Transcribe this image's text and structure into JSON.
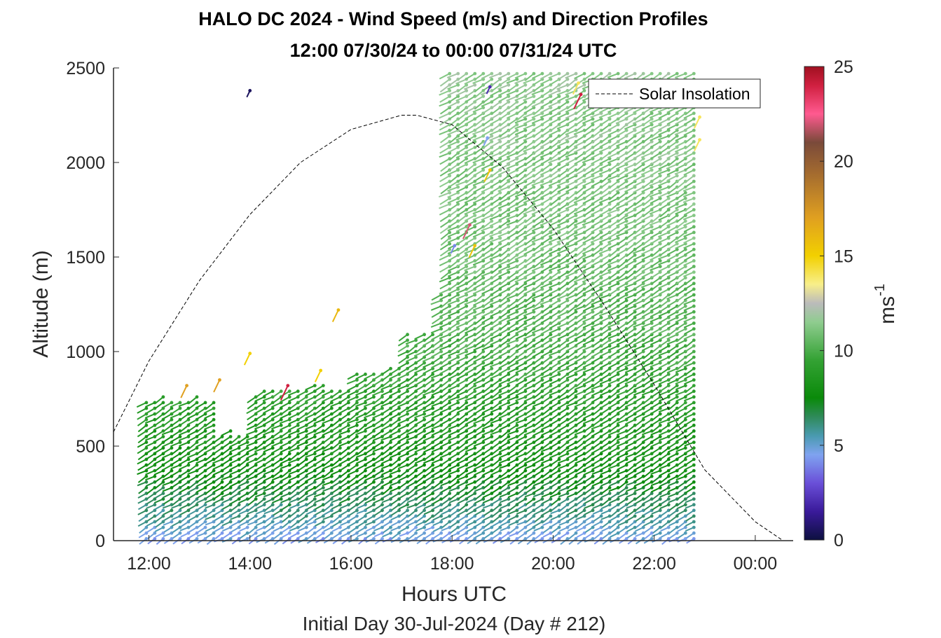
{
  "chart_data": {
    "type": "scatter",
    "title": "HALO DC 2024 - Wind Speed (m/s) and Direction Profiles",
    "subtitle": "12:00 07/30/24 to 00:00 07/31/24  UTC",
    "xlabel": "Hours UTC",
    "xsublabel": "Initial Day 30-Jul-2024 (Day # 212)",
    "ylabel": "Altitude (m)",
    "xlim": [
      11.3,
      24.75
    ],
    "ylim": [
      0,
      2500
    ],
    "x_ticks": [
      12,
      14,
      16,
      18,
      20,
      22,
      24
    ],
    "x_tick_labels": [
      "12:00",
      "14:00",
      "16:00",
      "18:00",
      "20:00",
      "22:00",
      "00:00"
    ],
    "y_ticks": [
      0,
      500,
      1000,
      1500,
      2000,
      2500
    ],
    "y_tick_labels": [
      "0",
      "500",
      "1000",
      "1500",
      "2000",
      "2500"
    ],
    "colorbar": {
      "label": "ms-1",
      "label_base": "ms",
      "label_exp": "-1",
      "range": [
        0,
        25
      ],
      "ticks": [
        0,
        5,
        10,
        15,
        20,
        25
      ],
      "tick_labels": [
        "0",
        "5",
        "10",
        "15",
        "20",
        "25"
      ],
      "stops": [
        {
          "v": 0,
          "c": "#0d1040"
        },
        {
          "v": 1.5,
          "c": "#3a1a9a"
        },
        {
          "v": 3,
          "c": "#6a4fd8"
        },
        {
          "v": 4.5,
          "c": "#7fa3f0"
        },
        {
          "v": 5.5,
          "c": "#4a9ab0"
        },
        {
          "v": 6.5,
          "c": "#2f8a5a"
        },
        {
          "v": 7.5,
          "c": "#0a8a0a"
        },
        {
          "v": 9.5,
          "c": "#34a234"
        },
        {
          "v": 11.5,
          "c": "#8fcc8f"
        },
        {
          "v": 12.5,
          "c": "#bbbbbb"
        },
        {
          "v": 13.5,
          "c": "#f8ef8a"
        },
        {
          "v": 15,
          "c": "#f2d000"
        },
        {
          "v": 17,
          "c": "#e0a020"
        },
        {
          "v": 19.5,
          "c": "#a06830"
        },
        {
          "v": 21,
          "c": "#7a4a3a"
        },
        {
          "v": 22.5,
          "c": "#ff5a90"
        },
        {
          "v": 24,
          "c": "#d02040"
        },
        {
          "v": 25,
          "c": "#a01020"
        }
      ]
    },
    "legend": {
      "label": "Solar Insolation",
      "position": "top-right"
    },
    "solar_insolation": {
      "style": "dashed",
      "color": "#000000",
      "curve": "relative",
      "x": [
        11.3,
        12,
        13,
        14,
        15,
        16,
        17,
        17.3,
        18,
        19,
        20,
        21,
        22,
        23,
        24,
        24.55,
        24.75
      ],
      "y": [
        0.23,
        0.38,
        0.55,
        0.69,
        0.8,
        0.87,
        0.9,
        0.9,
        0.88,
        0.79,
        0.66,
        0.5,
        0.33,
        0.15,
        0.04,
        0.0,
        0.0
      ]
    },
    "profiles": {
      "description": "wind barbs, one vertical profile every 10 minutes",
      "x_start": 11.95,
      "x_step": 0.1667,
      "x_end": 22.9,
      "z_step": 30,
      "top_by_hour": [
        {
          "x": 11.95,
          "z": 750
        },
        {
          "x": 13.3,
          "z": 590
        },
        {
          "x": 14.0,
          "z": 800
        },
        {
          "x": 15.0,
          "z": 820
        },
        {
          "x": 16.0,
          "z": 900
        },
        {
          "x": 17.0,
          "z": 1100
        },
        {
          "x": 17.7,
          "z": 1320
        },
        {
          "x": 18.0,
          "z": 2500
        },
        {
          "x": 22.9,
          "z": 2500
        }
      ],
      "wind_from_direction_deg": 240,
      "speed_by_altitude": [
        {
          "z": 0,
          "v": 4.5
        },
        {
          "z": 150,
          "v": 6
        },
        {
          "z": 400,
          "v": 8
        },
        {
          "z": 1000,
          "v": 10
        },
        {
          "z": 1600,
          "v": 11
        },
        {
          "z": 2500,
          "v": 11.5
        }
      ]
    },
    "outliers": [
      {
        "x": 14.0,
        "z": 2380,
        "v": 0.5
      },
      {
        "x": 12.75,
        "z": 820,
        "v": 17
      },
      {
        "x": 13.4,
        "z": 850,
        "v": 17
      },
      {
        "x": 14.75,
        "z": 820,
        "v": 24
      },
      {
        "x": 14.0,
        "z": 990,
        "v": 15
      },
      {
        "x": 15.4,
        "z": 900,
        "v": 15
      },
      {
        "x": 15.75,
        "z": 1220,
        "v": 16
      },
      {
        "x": 18.45,
        "z": 1560,
        "v": 15.5
      },
      {
        "x": 18.75,
        "z": 1960,
        "v": 15.5
      },
      {
        "x": 18.35,
        "z": 1670,
        "v": 22
      },
      {
        "x": 18.05,
        "z": 1560,
        "v": 4
      },
      {
        "x": 18.75,
        "z": 2400,
        "v": 2
      },
      {
        "x": 18.7,
        "z": 2130,
        "v": 4.5
      },
      {
        "x": 20.55,
        "z": 2360,
        "v": 24
      },
      {
        "x": 20.5,
        "z": 2420,
        "v": 14
      },
      {
        "x": 22.9,
        "z": 2240,
        "v": 14
      },
      {
        "x": 22.9,
        "z": 2120,
        "v": 14
      }
    ]
  }
}
